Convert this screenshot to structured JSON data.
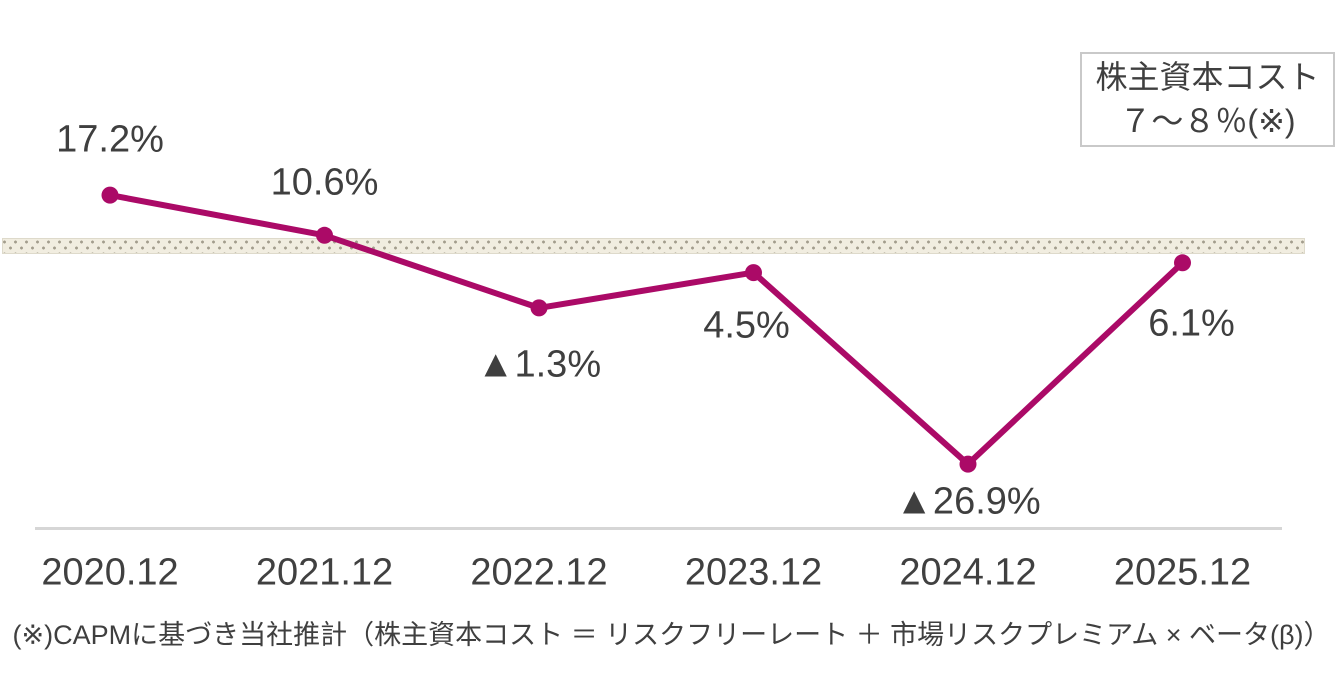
{
  "annotation_box": {
    "line1": "株主資本コスト",
    "line2": "７～８％(※)"
  },
  "footnote": "(※)CAPMに基づき当社推計（株主資本コスト ＝ リスクフリーレート ＋ 市場リスクプレミアム × ベータ(β)）",
  "colors": {
    "line": "#ab0a67",
    "marker": "#ab0a67",
    "band_fill": "#f1ede0",
    "band_dot": "#a39d8d",
    "text": "#3f3f3f",
    "axis_line": "#d6d6d6",
    "box_border": "#c9c9c9"
  },
  "chart_data": {
    "type": "line",
    "categories": [
      "2020.12",
      "2021.12",
      "2022.12",
      "2023.12",
      "2024.12",
      "2025.12"
    ],
    "values": [
      17.2,
      10.6,
      -1.3,
      4.5,
      -26.9,
      6.1
    ],
    "display_labels": [
      "17.2%",
      "10.6%",
      "▲1.3%",
      "4.5%",
      "▲26.9%",
      "6.1%"
    ],
    "unit": "%",
    "negative_notation": "▲",
    "reference_band": {
      "min": 7,
      "max": 8,
      "unit": "%",
      "label": "株主資本コスト ７～８％(※)"
    },
    "title": "",
    "xlabel": "",
    "ylabel": "",
    "ylim": [
      -30,
      20
    ],
    "grid": false,
    "legend": false
  }
}
